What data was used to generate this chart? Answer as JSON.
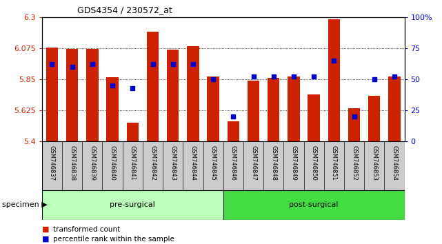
{
  "title": "GDS4354 / 230572_at",
  "samples": [
    "GSM746837",
    "GSM746838",
    "GSM746839",
    "GSM746840",
    "GSM746841",
    "GSM746842",
    "GSM746843",
    "GSM746844",
    "GSM746845",
    "GSM746846",
    "GSM746847",
    "GSM746848",
    "GSM746849",
    "GSM746850",
    "GSM746851",
    "GSM746852",
    "GSM746853",
    "GSM746854"
  ],
  "bar_values": [
    6.082,
    6.072,
    6.07,
    5.863,
    5.535,
    6.195,
    6.063,
    6.09,
    5.868,
    5.545,
    5.84,
    5.858,
    5.868,
    5.74,
    6.285,
    5.64,
    5.73,
    5.87
  ],
  "percentile_values": [
    62,
    60,
    62,
    45,
    43,
    62,
    62,
    62,
    50,
    20,
    52,
    52,
    52,
    52,
    65,
    20,
    50,
    52
  ],
  "pre_surgical_count": 9,
  "post_surgical_count": 9,
  "ymin": 5.4,
  "ymax": 6.3,
  "yticks": [
    5.4,
    5.625,
    5.85,
    6.075,
    6.3
  ],
  "ytick_labels": [
    "5.4",
    "5.625",
    "5.85",
    "6.075",
    "6.3"
  ],
  "right_yticks": [
    0,
    25,
    50,
    75,
    100
  ],
  "right_ytick_labels": [
    "0",
    "25",
    "50",
    "75",
    "100%"
  ],
  "bar_color": "#cc2200",
  "dot_color": "#0000cc",
  "pre_surgical_color": "#bbffbb",
  "post_surgical_color": "#44dd44",
  "label_bg_color": "#cccccc",
  "axis_color_left": "#cc2200",
  "axis_color_right": "#0000cc",
  "legend_red_label": "transformed count",
  "legend_blue_label": "percentile rank within the sample",
  "specimen_label": "specimen"
}
